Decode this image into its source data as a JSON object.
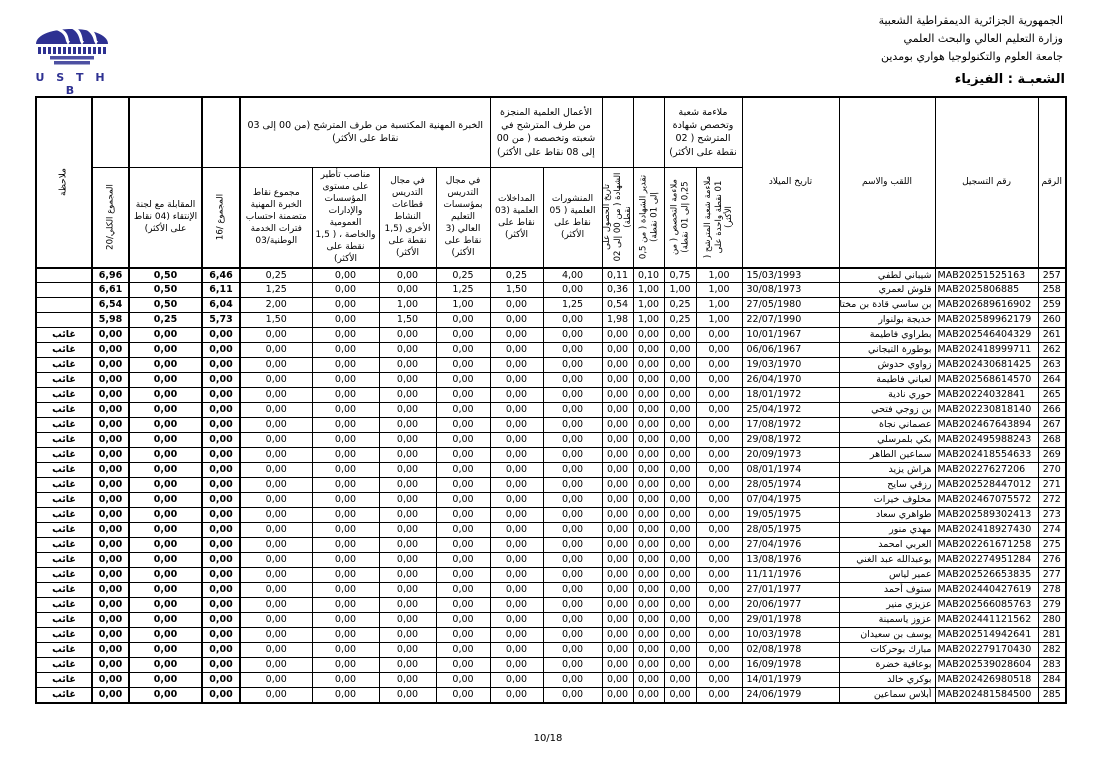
{
  "org": {
    "line1": "الجمهورية الجزائرية الديمقراطية الشعبية",
    "line2": "وزارة التعليم العالي والبحث العلمي",
    "line3": "جامعة العلوم والتكنولوجيا هواري بومدين"
  },
  "logo": {
    "caption": "U S T H B",
    "color": "#2e3192"
  },
  "branch_title": "الشعبـة : الفيزياء",
  "page_number": "10/18",
  "table": {
    "headers": {
      "num": "الرقم",
      "reg": "رقم التسجيل",
      "name": "اللقب والاسم",
      "birth": "تاريخ الميلاد",
      "group_suitability": "ملاءمة شعبة وتخصص شهادة المترشح ( 02 نقطة على الأكثر)",
      "suit_branch": "ملاءمة شعبة المترشح ( 01 نقطة واحدة على الأكثر)",
      "suit_specialty": "ملاءمة التخصص ( من 0,25 إلى 01 نقطة)",
      "degree_grade": "تقدير الشهادة ( من 0,5 إلى 01 نقطة)",
      "degree_date": "تاريخ الحصول على الشهادة ( من 00 إلى 02 نقطة)",
      "group_works": "الأعمال العلمية المنجزة من طرف المترشح في شعبته وتخصصه ( من 00 إلى 08 نقاط على الأكثر)",
      "publications": "المنشورات العلمية ( 05 نقاط على الأكثر)",
      "communications": "المداخلات العلمية (03 نقاط على الأكثر)",
      "group_experience": "الخبرة المهنية المكتسبة من طرف المترشح (من 00 إلى 03 نقاط على الأكثر)",
      "teach_higher": "في مجال التدريس بمؤسسات التعليم العالي (3 نقاط على الأكثر)",
      "teach_other": "في مجال التدريس قطاعات النشاط الأخرى (1,5 نقطة على الأكثر)",
      "supervision": "مناصب تأطير على مستوى المؤسسات والإدارات العمومية والخاصة ، ( 1,5 نقطة على الأكثر)",
      "exp_total": "مجموع نقاط الخبرة المهنية متضمنة احتساب فترات الخدمة الوطنية/03",
      "total16": "المجموع /16",
      "interview": "المقابلة مع لجنة الإنتقاء (04 نقاط على الأكثر)",
      "total20": "المجموع الكلي/20",
      "note": "ملاحظة"
    },
    "absent_label": "غائب",
    "rows": [
      {
        "num": "257",
        "reg": "MAB20251525163",
        "name": "شيباني لطفي",
        "birth": "15/03/1993",
        "scores": [
          "1,00",
          "0,75",
          "0,10",
          "0,11",
          "4,00",
          "0,25",
          "0,25",
          "0,00",
          "0,00",
          "0,25"
        ],
        "total16": "6,46",
        "interview": "0,50",
        "total20": "6,96",
        "note": ""
      },
      {
        "num": "258",
        "reg": "MAB2025806885",
        "name": "قلوش لعمري",
        "birth": "30/08/1973",
        "scores": [
          "1,00",
          "1,00",
          "1,00",
          "0,36",
          "0,00",
          "1,50",
          "1,25",
          "0,00",
          "0,00",
          "1,25"
        ],
        "total16": "6,11",
        "interview": "0,50",
        "total20": "6,61",
        "note": ""
      },
      {
        "num": "259",
        "reg": "MAB202689616902",
        "name": "بن ساسي قادة بن مختار",
        "birth": "27/05/1980",
        "scores": [
          "1,00",
          "0,25",
          "1,00",
          "0,54",
          "1,25",
          "0,00",
          "1,00",
          "1,00",
          "0,00",
          "2,00"
        ],
        "total16": "6,04",
        "interview": "0,50",
        "total20": "6,54",
        "note": ""
      },
      {
        "num": "260",
        "reg": "MAB202589962179",
        "name": "خديجة بولنوار",
        "birth": "22/07/1990",
        "scores": [
          "1,00",
          "0,25",
          "1,00",
          "1,98",
          "0,00",
          "0,00",
          "0,00",
          "1,50",
          "0,00",
          "1,50"
        ],
        "total16": "5,73",
        "interview": "0,25",
        "total20": "5,98",
        "note": ""
      },
      {
        "num": "261",
        "reg": "MAB202546404329",
        "name": "بطراوي فاطيمة",
        "birth": "10/01/1967",
        "scores": [
          "0,00",
          "0,00",
          "0,00",
          "0,00",
          "0,00",
          "0,00",
          "0,00",
          "0,00",
          "0,00",
          "0,00"
        ],
        "total16": "0,00",
        "interview": "0,00",
        "total20": "0,00",
        "note": "غائب"
      },
      {
        "num": "262",
        "reg": "MAB202418999711",
        "name": "بوطورة التيجاني",
        "birth": "06/06/1967",
        "scores": [
          "0,00",
          "0,00",
          "0,00",
          "0,00",
          "0,00",
          "0,00",
          "0,00",
          "0,00",
          "0,00",
          "0,00"
        ],
        "total16": "0,00",
        "interview": "0,00",
        "total20": "0,00",
        "note": "غائب"
      },
      {
        "num": "263",
        "reg": "MAB202430681425",
        "name": "زواوي حدوش",
        "birth": "19/03/1970",
        "scores": [
          "0,00",
          "0,00",
          "0,00",
          "0,00",
          "0,00",
          "0,00",
          "0,00",
          "0,00",
          "0,00",
          "0,00"
        ],
        "total16": "0,00",
        "interview": "0,00",
        "total20": "0,00",
        "note": "غائب"
      },
      {
        "num": "264",
        "reg": "MAB202568614570",
        "name": "لعباني فاطيمة",
        "birth": "26/04/1970",
        "scores": [
          "0,00",
          "0,00",
          "0,00",
          "0,00",
          "0,00",
          "0,00",
          "0,00",
          "0,00",
          "0,00",
          "0,00"
        ],
        "total16": "0,00",
        "interview": "0,00",
        "total20": "0,00",
        "note": "غائب"
      },
      {
        "num": "265",
        "reg": "MAB20224032841",
        "name": "حوري نادية",
        "birth": "18/01/1972",
        "scores": [
          "0,00",
          "0,00",
          "0,00",
          "0,00",
          "0,00",
          "0,00",
          "0,00",
          "0,00",
          "0,00",
          "0,00"
        ],
        "total16": "0,00",
        "interview": "0,00",
        "total20": "0,00",
        "note": "غائب"
      },
      {
        "num": "266",
        "reg": "MAB202230818140",
        "name": "بن زوجي فتحي",
        "birth": "25/04/1972",
        "scores": [
          "0,00",
          "0,00",
          "0,00",
          "0,00",
          "0,00",
          "0,00",
          "0,00",
          "0,00",
          "0,00",
          "0,00"
        ],
        "total16": "0,00",
        "interview": "0,00",
        "total20": "0,00",
        "note": "غائب"
      },
      {
        "num": "267",
        "reg": "MAB202467643894",
        "name": "عصماني نجاة",
        "birth": "17/08/1972",
        "scores": [
          "0,00",
          "0,00",
          "0,00",
          "0,00",
          "0,00",
          "0,00",
          "0,00",
          "0,00",
          "0,00",
          "0,00"
        ],
        "total16": "0,00",
        "interview": "0,00",
        "total20": "0,00",
        "note": "غائب"
      },
      {
        "num": "268",
        "reg": "MAB202495988243",
        "name": "بكي بلمرسلي",
        "birth": "29/08/1972",
        "scores": [
          "0,00",
          "0,00",
          "0,00",
          "0,00",
          "0,00",
          "0,00",
          "0,00",
          "0,00",
          "0,00",
          "0,00"
        ],
        "total16": "0,00",
        "interview": "0,00",
        "total20": "0,00",
        "note": "غائب"
      },
      {
        "num": "269",
        "reg": "MAB202418554633",
        "name": "سماعين الطاهر",
        "birth": "20/09/1973",
        "scores": [
          "0,00",
          "0,00",
          "0,00",
          "0,00",
          "0,00",
          "0,00",
          "0,00",
          "0,00",
          "0,00",
          "0,00"
        ],
        "total16": "0,00",
        "interview": "0,00",
        "total20": "0,00",
        "note": "غائب"
      },
      {
        "num": "270",
        "reg": "MAB20227627206",
        "name": "هراش يزيد",
        "birth": "08/01/1974",
        "scores": [
          "0,00",
          "0,00",
          "0,00",
          "0,00",
          "0,00",
          "0,00",
          "0,00",
          "0,00",
          "0,00",
          "0,00"
        ],
        "total16": "0,00",
        "interview": "0,00",
        "total20": "0,00",
        "note": "غائب"
      },
      {
        "num": "271",
        "reg": "MAB202528447012",
        "name": "رزقي سايح",
        "birth": "28/05/1974",
        "scores": [
          "0,00",
          "0,00",
          "0,00",
          "0,00",
          "0,00",
          "0,00",
          "0,00",
          "0,00",
          "0,00",
          "0,00"
        ],
        "total16": "0,00",
        "interview": "0,00",
        "total20": "0,00",
        "note": "غائب"
      },
      {
        "num": "272",
        "reg": "MAB202467075572",
        "name": "مخلوف خيرات",
        "birth": "07/04/1975",
        "scores": [
          "0,00",
          "0,00",
          "0,00",
          "0,00",
          "0,00",
          "0,00",
          "0,00",
          "0,00",
          "0,00",
          "0,00"
        ],
        "total16": "0,00",
        "interview": "0,00",
        "total20": "0,00",
        "note": "غائب"
      },
      {
        "num": "273",
        "reg": "MAB202589302413",
        "name": "طواهري سعاد",
        "birth": "19/05/1975",
        "scores": [
          "0,00",
          "0,00",
          "0,00",
          "0,00",
          "0,00",
          "0,00",
          "0,00",
          "0,00",
          "0,00",
          "0,00"
        ],
        "total16": "0,00",
        "interview": "0,00",
        "total20": "0,00",
        "note": "غائب"
      },
      {
        "num": "274",
        "reg": "MAB202418927430",
        "name": "مهدي منور",
        "birth": "28/05/1975",
        "scores": [
          "0,00",
          "0,00",
          "0,00",
          "0,00",
          "0,00",
          "0,00",
          "0,00",
          "0,00",
          "0,00",
          "0,00"
        ],
        "total16": "0,00",
        "interview": "0,00",
        "total20": "0,00",
        "note": "غائب"
      },
      {
        "num": "275",
        "reg": "MAB202261671258",
        "name": "العربي امحمد",
        "birth": "27/04/1976",
        "scores": [
          "0,00",
          "0,00",
          "0,00",
          "0,00",
          "0,00",
          "0,00",
          "0,00",
          "0,00",
          "0,00",
          "0,00"
        ],
        "total16": "0,00",
        "interview": "0,00",
        "total20": "0,00",
        "note": "غائب"
      },
      {
        "num": "276",
        "reg": "MAB202274951284",
        "name": "بوعبدالله عبد الغني",
        "birth": "13/08/1976",
        "scores": [
          "0,00",
          "0,00",
          "0,00",
          "0,00",
          "0,00",
          "0,00",
          "0,00",
          "0,00",
          "0,00",
          "0,00"
        ],
        "total16": "0,00",
        "interview": "0,00",
        "total20": "0,00",
        "note": "غائب"
      },
      {
        "num": "277",
        "reg": "MAB202526653835",
        "name": "عمير لياس",
        "birth": "11/11/1976",
        "scores": [
          "0,00",
          "0,00",
          "0,00",
          "0,00",
          "0,00",
          "0,00",
          "0,00",
          "0,00",
          "0,00",
          "0,00"
        ],
        "total16": "0,00",
        "interview": "0,00",
        "total20": "0,00",
        "note": "غائب"
      },
      {
        "num": "278",
        "reg": "MAB202440427619",
        "name": "ستوف أحمد",
        "birth": "27/01/1977",
        "scores": [
          "0,00",
          "0,00",
          "0,00",
          "0,00",
          "0,00",
          "0,00",
          "0,00",
          "0,00",
          "0,00",
          "0,00"
        ],
        "total16": "0,00",
        "interview": "0,00",
        "total20": "0,00",
        "note": "غائب"
      },
      {
        "num": "279",
        "reg": "MAB202566085763",
        "name": "عزيزي منير",
        "birth": "20/06/1977",
        "scores": [
          "0,00",
          "0,00",
          "0,00",
          "0,00",
          "0,00",
          "0,00",
          "0,00",
          "0,00",
          "0,00",
          "0,00"
        ],
        "total16": "0,00",
        "interview": "0,00",
        "total20": "0,00",
        "note": "غائب"
      },
      {
        "num": "280",
        "reg": "MAB202441121562",
        "name": "عزوز ياسمينة",
        "birth": "29/01/1978",
        "scores": [
          "0,00",
          "0,00",
          "0,00",
          "0,00",
          "0,00",
          "0,00",
          "0,00",
          "0,00",
          "0,00",
          "0,00"
        ],
        "total16": "0,00",
        "interview": "0,00",
        "total20": "0,00",
        "note": "غائب"
      },
      {
        "num": "281",
        "reg": "MAB202514942641",
        "name": "يوسف بن سعيدان",
        "birth": "10/03/1978",
        "scores": [
          "0,00",
          "0,00",
          "0,00",
          "0,00",
          "0,00",
          "0,00",
          "0,00",
          "0,00",
          "0,00",
          "0,00"
        ],
        "total16": "0,00",
        "interview": "0,00",
        "total20": "0,00",
        "note": "غائب"
      },
      {
        "num": "282",
        "reg": "MAB202279170430",
        "name": "مبارك بوحركات",
        "birth": "02/08/1978",
        "scores": [
          "0,00",
          "0,00",
          "0,00",
          "0,00",
          "0,00",
          "0,00",
          "0,00",
          "0,00",
          "0,00",
          "0,00"
        ],
        "total16": "0,00",
        "interview": "0,00",
        "total20": "0,00",
        "note": "غائب"
      },
      {
        "num": "283",
        "reg": "MAB202539028604",
        "name": "بوعافية خضرة",
        "birth": "16/09/1978",
        "scores": [
          "0,00",
          "0,00",
          "0,00",
          "0,00",
          "0,00",
          "0,00",
          "0,00",
          "0,00",
          "0,00",
          "0,00"
        ],
        "total16": "0,00",
        "interview": "0,00",
        "total20": "0,00",
        "note": "غائب"
      },
      {
        "num": "284",
        "reg": "MAB202426980518",
        "name": "بوكري خالد",
        "birth": "14/01/1979",
        "scores": [
          "0,00",
          "0,00",
          "0,00",
          "0,00",
          "0,00",
          "0,00",
          "0,00",
          "0,00",
          "0,00",
          "0,00"
        ],
        "total16": "0,00",
        "interview": "0,00",
        "total20": "0,00",
        "note": "غائب"
      },
      {
        "num": "285",
        "reg": "MAB202481584500",
        "name": "أبلاس سماعين",
        "birth": "24/06/1979",
        "scores": [
          "0,00",
          "0,00",
          "0,00",
          "0,00",
          "0,00",
          "0,00",
          "0,00",
          "0,00",
          "0,00",
          "0,00"
        ],
        "total16": "0,00",
        "interview": "0,00",
        "total20": "0,00",
        "note": "غائب"
      }
    ]
  }
}
